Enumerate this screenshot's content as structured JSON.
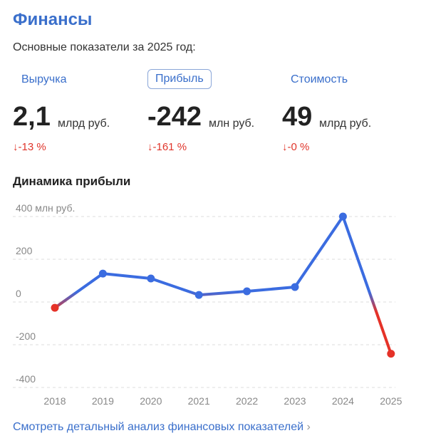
{
  "header": {
    "title": "Финансы",
    "subtitle": "Основные показатели за 2025 год:"
  },
  "metrics": [
    {
      "label": "Выручка",
      "value": "2,1",
      "unit": "млрд руб.",
      "change": "↓-13 %"
    },
    {
      "label": "Прибыль",
      "value": "-242",
      "unit": "млн руб.",
      "change": "↓-161 %",
      "selected": true
    },
    {
      "label": "Стоимость",
      "value": "49",
      "unit": "млрд руб.",
      "change": "↓-0 %"
    }
  ],
  "chart_data": {
    "type": "line",
    "title": "Динамика прибыли",
    "categories": [
      "2018",
      "2019",
      "2020",
      "2021",
      "2022",
      "2023",
      "2024",
      "2025"
    ],
    "values": [
      -27,
      133,
      110,
      33,
      50,
      70,
      400,
      -242
    ],
    "color": "#3b6ce0",
    "negative_color": "#e53228",
    "ylim": [
      -400,
      400
    ],
    "yticks": [
      {
        "value": 400,
        "label": "400 млн руб."
      },
      200,
      0,
      -200,
      -400
    ],
    "grid": true
  },
  "footer": {
    "link": "Смотреть детальный анализ финансовых показателей"
  }
}
